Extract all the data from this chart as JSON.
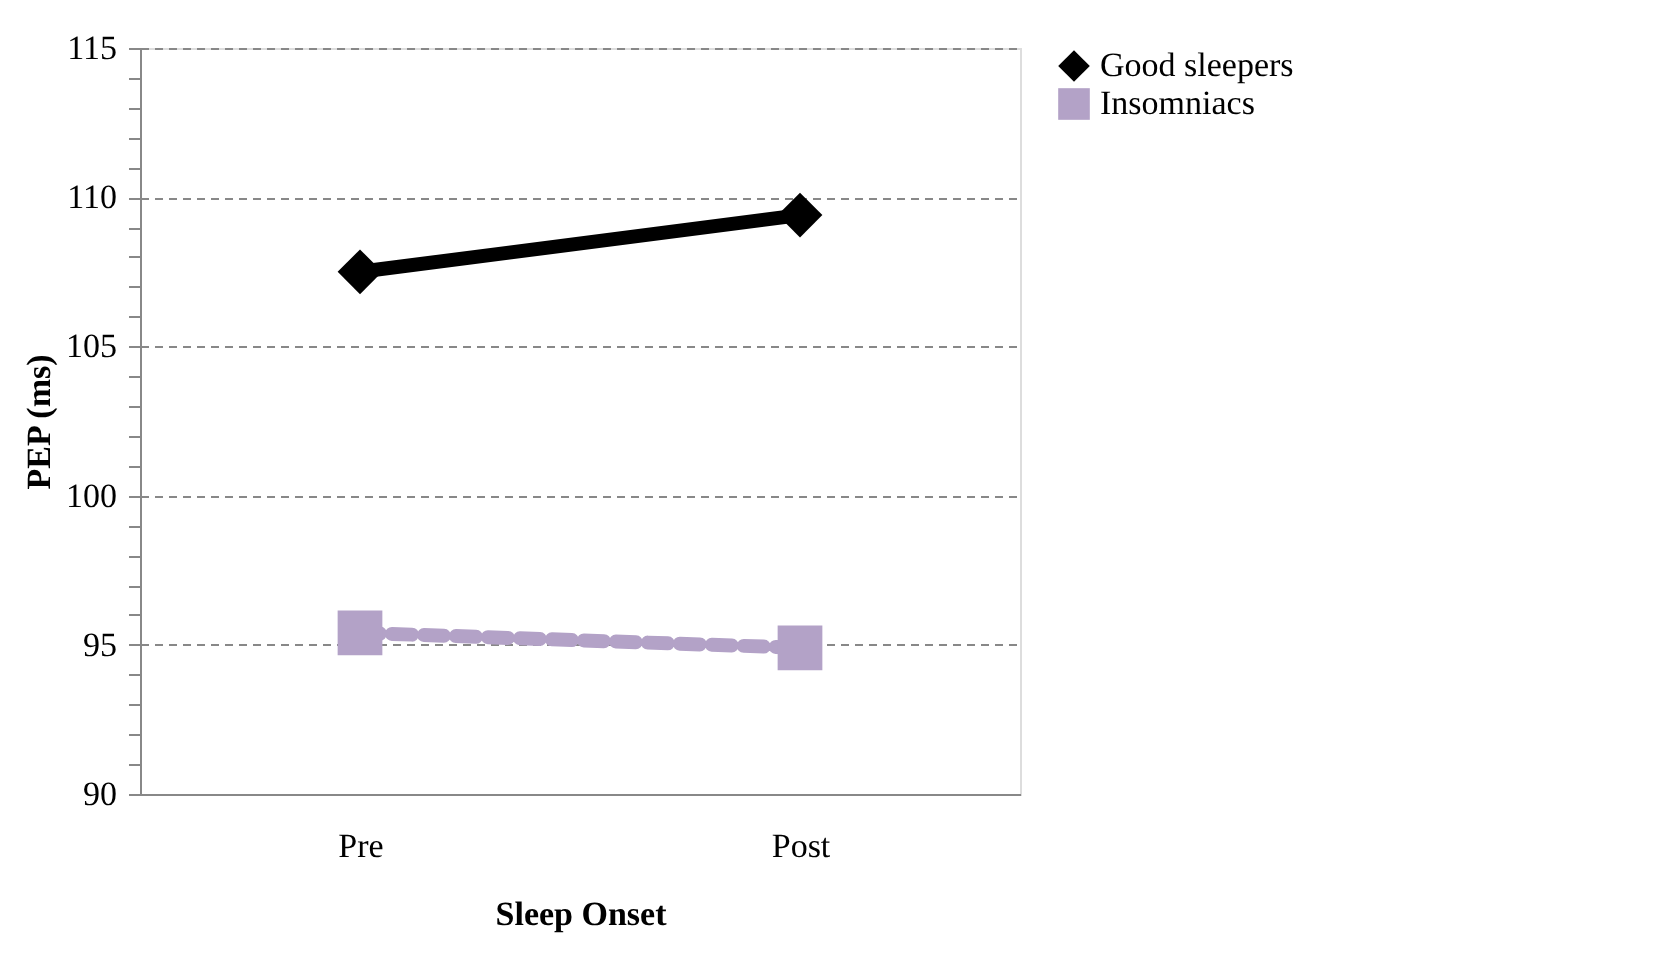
{
  "chart_data": {
    "type": "line",
    "xlabel": "Sleep Onset",
    "ylabel": "PEP (ms)",
    "categories": [
      "Pre",
      "Post"
    ],
    "series": [
      {
        "name": "Good sleepers",
        "color": "#000000",
        "values": [
          107.5,
          109.4
        ],
        "marker": "diamond",
        "line_style": "solid"
      },
      {
        "name": "Insomniacs",
        "color": "#b3a2c7",
        "values": [
          95.4,
          94.9
        ],
        "marker": "square",
        "line_style": "dashed"
      }
    ],
    "ylim": [
      90,
      115
    ],
    "yticks": [
      90,
      {
        "value": 91,
        "label": null
      },
      {
        "value": 92,
        "label": null
      },
      {
        "value": 93,
        "label": null
      },
      {
        "value": 94,
        "label": null
      },
      95,
      {
        "value": 96,
        "label": null
      },
      {
        "value": 97,
        "label": null
      },
      {
        "value": 98,
        "label": null
      },
      {
        "value": 99,
        "label": null
      },
      100,
      {
        "value": 101,
        "label": null
      },
      {
        "value": 102,
        "label": null
      },
      {
        "value": 103,
        "label": null
      },
      {
        "value": 104,
        "label": null
      },
      105,
      {
        "value": 106,
        "label": null
      },
      {
        "value": 107,
        "label": null
      },
      {
        "value": 108,
        "label": null
      },
      {
        "value": 109,
        "label": null
      },
      110,
      {
        "value": 111,
        "label": null
      },
      {
        "value": 112,
        "label": null
      },
      {
        "value": 113,
        "label": null
      },
      {
        "value": 114,
        "label": null
      },
      115
    ],
    "grid": "y",
    "legend": "right"
  }
}
